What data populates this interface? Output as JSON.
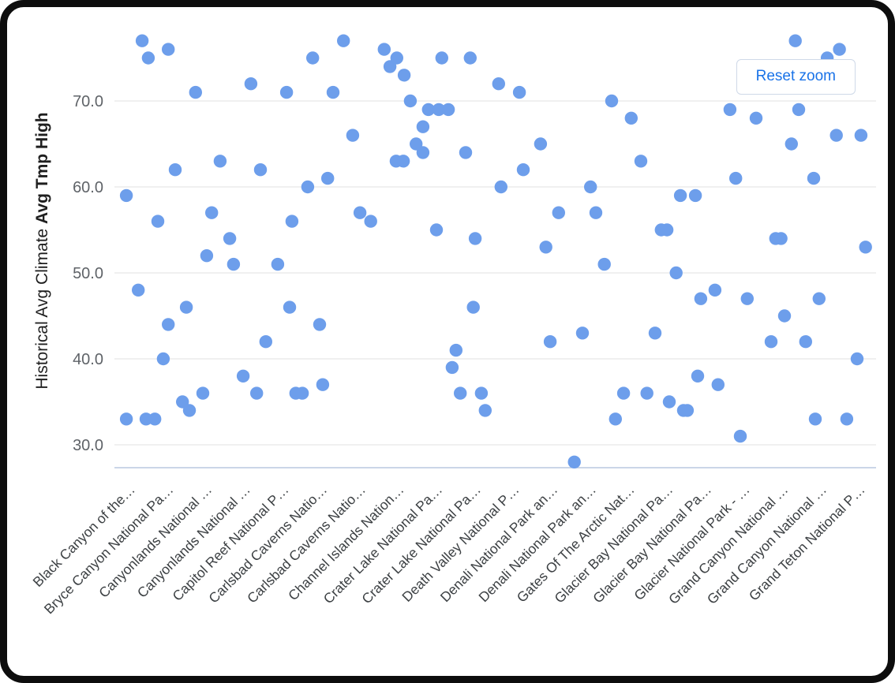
{
  "chart": {
    "reset_zoom_label": "Reset zoom"
  },
  "chart_data": {
    "type": "scatter",
    "title": "",
    "ylabel_prefix": "Historical Avg Climate",
    "ylabel_bold": "Avg Tmp High",
    "xlabel": "",
    "y_ticks": [
      "30.0",
      "40.0",
      "50.0",
      "60.0",
      "70.0"
    ],
    "ylim": [
      27.5,
      78.5
    ],
    "grid": true,
    "legend": false,
    "marker_color": "#6d9eeb",
    "grid_color": "#e8e8e8",
    "axis_line_color": "#bac8e0",
    "categories": [
      "Black Canyon of the…",
      "Bryce Canyon National Pa…",
      "Canyonlands National …",
      "Canyonlands National …",
      "Capitol Reef National P…",
      "Carlsbad Caverns Natio…",
      "Carlsbad Caverns Natio…",
      "Channel Islands Nation…",
      "Crater Lake National Pa…",
      "Crater Lake National Pa…",
      "Death Valley National P…",
      "Denali National Park an…",
      "Denali National Park an…",
      "Gates Of The Arctic Nat…",
      "Glacier Bay National Pa…",
      "Glacier Bay National Pa…",
      "Glacier National Park - …",
      "Grand Canyon National …",
      "Grand Canyon National …",
      "Grand Teton National P…"
    ],
    "points": [
      [
        -0.1,
        59
      ],
      [
        -0.1,
        33
      ],
      [
        0.21,
        48
      ],
      [
        0.31,
        77
      ],
      [
        0.41,
        33
      ],
      [
        0.47,
        75
      ],
      [
        0.64,
        33
      ],
      [
        0.72,
        56
      ],
      [
        0.86,
        40
      ],
      [
        0.99,
        76
      ],
      [
        0.99,
        44
      ],
      [
        1.17,
        62
      ],
      [
        1.36,
        35
      ],
      [
        1.46,
        46
      ],
      [
        1.54,
        34
      ],
      [
        1.7,
        71
      ],
      [
        1.89,
        36
      ],
      [
        1.99,
        52
      ],
      [
        2.12,
        57
      ],
      [
        2.34,
        63
      ],
      [
        2.59,
        54
      ],
      [
        2.69,
        51
      ],
      [
        2.94,
        38
      ],
      [
        3.14,
        72
      ],
      [
        3.29,
        36
      ],
      [
        3.39,
        62
      ],
      [
        3.53,
        42
      ],
      [
        3.84,
        51
      ],
      [
        4.07,
        71
      ],
      [
        4.15,
        46
      ],
      [
        4.21,
        56
      ],
      [
        4.31,
        36
      ],
      [
        4.48,
        36
      ],
      [
        4.62,
        60
      ],
      [
        4.75,
        75
      ],
      [
        4.93,
        44
      ],
      [
        5.01,
        37
      ],
      [
        5.14,
        61
      ],
      [
        5.28,
        71
      ],
      [
        5.55,
        77
      ],
      [
        5.79,
        66
      ],
      [
        5.98,
        57
      ],
      [
        6.26,
        56
      ],
      [
        6.61,
        76
      ],
      [
        6.76,
        74
      ],
      [
        6.92,
        63
      ],
      [
        6.94,
        75
      ],
      [
        7.11,
        63
      ],
      [
        7.13,
        73
      ],
      [
        7.29,
        70
      ],
      [
        7.44,
        65
      ],
      [
        7.62,
        67
      ],
      [
        7.62,
        64
      ],
      [
        7.76,
        69
      ],
      [
        7.97,
        55
      ],
      [
        8.03,
        69
      ],
      [
        8.11,
        75
      ],
      [
        8.28,
        69
      ],
      [
        8.38,
        39
      ],
      [
        8.48,
        41
      ],
      [
        8.59,
        36
      ],
      [
        8.73,
        64
      ],
      [
        8.85,
        75
      ],
      [
        8.93,
        46
      ],
      [
        8.98,
        54
      ],
      [
        9.14,
        36
      ],
      [
        9.24,
        34
      ],
      [
        9.59,
        72
      ],
      [
        9.65,
        60
      ],
      [
        10.13,
        71
      ],
      [
        10.23,
        62
      ],
      [
        10.68,
        65
      ],
      [
        10.82,
        53
      ],
      [
        10.93,
        42
      ],
      [
        11.15,
        57
      ],
      [
        11.56,
        28
      ],
      [
        11.77,
        43
      ],
      [
        11.98,
        60
      ],
      [
        12.12,
        57
      ],
      [
        12.34,
        51
      ],
      [
        12.53,
        70
      ],
      [
        12.63,
        33
      ],
      [
        12.84,
        36
      ],
      [
        13.04,
        68
      ],
      [
        13.29,
        63
      ],
      [
        13.45,
        36
      ],
      [
        13.66,
        43
      ],
      [
        13.82,
        55
      ],
      [
        13.97,
        55
      ],
      [
        14.03,
        35
      ],
      [
        14.21,
        50
      ],
      [
        14.32,
        59
      ],
      [
        14.4,
        34
      ],
      [
        14.5,
        34
      ],
      [
        14.71,
        59
      ],
      [
        14.77,
        38
      ],
      [
        14.85,
        47
      ],
      [
        15.22,
        48
      ],
      [
        15.3,
        37
      ],
      [
        15.61,
        69
      ],
      [
        15.76,
        61
      ],
      [
        15.88,
        31
      ],
      [
        16.06,
        47
      ],
      [
        16.29,
        68
      ],
      [
        16.68,
        42
      ],
      [
        16.8,
        54
      ],
      [
        16.94,
        54
      ],
      [
        17.03,
        45
      ],
      [
        17.21,
        65
      ],
      [
        17.31,
        77
      ],
      [
        17.4,
        69
      ],
      [
        17.58,
        42
      ],
      [
        17.79,
        61
      ],
      [
        17.83,
        33
      ],
      [
        17.93,
        47
      ],
      [
        18.14,
        75
      ],
      [
        18.38,
        66
      ],
      [
        18.46,
        76
      ],
      [
        18.65,
        33
      ],
      [
        18.92,
        40
      ],
      [
        19.02,
        66
      ],
      [
        19.14,
        53
      ]
    ]
  }
}
